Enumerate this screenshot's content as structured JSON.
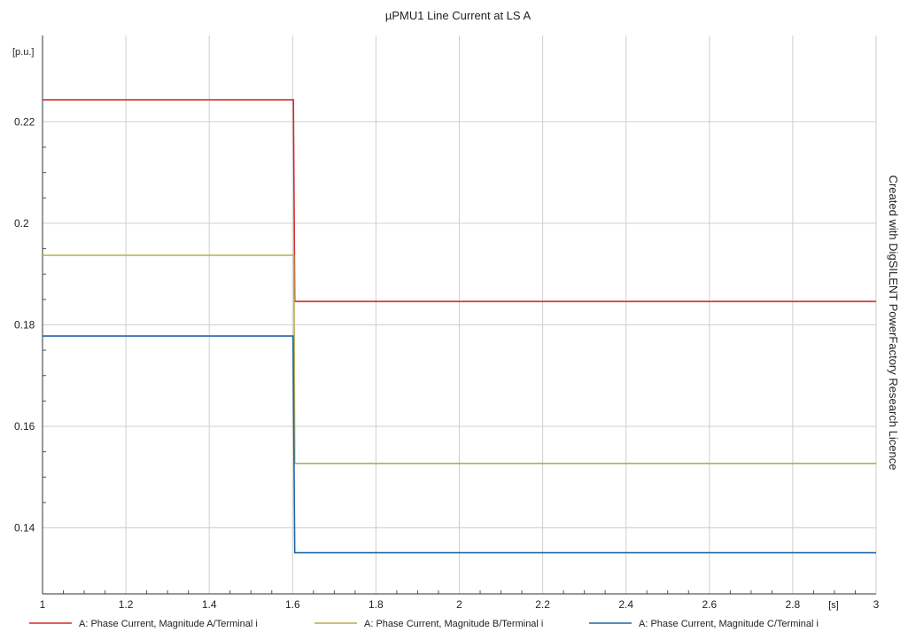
{
  "chart_data": {
    "type": "line",
    "title": "µPMU1 Line Current at LS A",
    "ylabel": "[p.u.]",
    "xlabel": "[s]",
    "watermark": "Created with DigSILENT PowerFactory Research Licence",
    "xlim": [
      1.0,
      3.0
    ],
    "ylim": [
      0.127,
      0.237
    ],
    "x_ticks": [
      1,
      1.2,
      1.4,
      1.6,
      1.8,
      2,
      2.2,
      2.4,
      2.6,
      2.8,
      3
    ],
    "x_tick_labels": [
      "1",
      "1.2",
      "1.4",
      "1.6",
      "1.8",
      "2",
      "2.2",
      "2.4",
      "2.6",
      "2.8",
      "3"
    ],
    "y_ticks": [
      0.14,
      0.16,
      0.18,
      0.2,
      0.22
    ],
    "y_tick_labels": [
      "0.14",
      "0.16",
      "0.18",
      "0.2",
      "0.22"
    ],
    "grid": true,
    "legend_position": "bottom",
    "series": [
      {
        "name": "A: Phase Current, Magnitude A/Terminal i",
        "color": "#d62a2a",
        "x": [
          1.0,
          1.602,
          1.605,
          3.0
        ],
        "y": [
          0.2243,
          0.2243,
          0.1846,
          0.1846
        ]
      },
      {
        "name": "A: Phase Current, Magnitude B/Terminal i",
        "color": "#b5ae50",
        "x": [
          1.0,
          1.603,
          1.605,
          3.0
        ],
        "y": [
          0.1937,
          0.1937,
          0.1527,
          0.1527
        ]
      },
      {
        "name": "A: Phase Current, Magnitude C/Terminal i",
        "color": "#2066a8",
        "x": [
          1.0,
          1.601,
          1.605,
          3.0
        ],
        "y": [
          0.1778,
          0.1778,
          0.1351,
          0.1351
        ]
      }
    ]
  }
}
